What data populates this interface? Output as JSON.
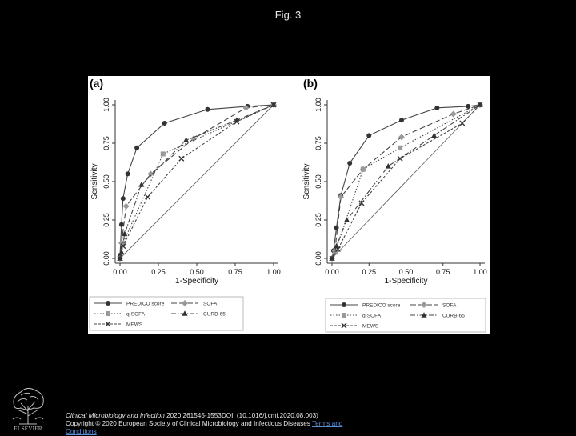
{
  "page": {
    "title": "Fig. 3",
    "citation": {
      "journal": "Clinical Microbiology and Infection",
      "details": " 2020 261545-1553DOI: (10.1016/j.cmi.2020.08.003)",
      "copyright": "Copyright © 2020 European Society of Clinical Microbiology and Infectious Diseases",
      "link_text": "Terms and",
      "link_text2": "Conditions"
    },
    "logo_text": "ELSEVIER"
  },
  "legend": {
    "items": [
      {
        "label": "PREDICO score",
        "color": "#555555",
        "marker": "circle",
        "dash": "solid"
      },
      {
        "label": "SOFA",
        "color": "#555555",
        "marker": "diamond",
        "dash": "longdash"
      },
      {
        "label": "q-SOFA",
        "color": "#555555",
        "marker": "square",
        "dash": "dot"
      },
      {
        "label": "CURB-65",
        "color": "#555555",
        "marker": "triangle",
        "dash": "dashdot"
      },
      {
        "label": "MEWS",
        "color": "#555555",
        "marker": "x",
        "dash": "shortdash"
      }
    ]
  },
  "chart_data": [
    {
      "type": "line",
      "panel_label": "(a)",
      "xlabel": "1-Specificity",
      "ylabel": "Sensitivity",
      "xlim": [
        0,
        1
      ],
      "ylim": [
        0,
        1
      ],
      "xticks": [
        "0.00",
        "0.25",
        "0.50",
        "0.75",
        "1.00"
      ],
      "yticks": [
        "0.00",
        "0.25",
        "0.50",
        "0.75",
        "1.00"
      ],
      "reference_line": true,
      "series": [
        {
          "name": "PREDICO score",
          "x": [
            0,
            0,
            0.01,
            0.02,
            0.05,
            0.11,
            0.29,
            0.57,
            0.83,
            1
          ],
          "y": [
            0,
            0.02,
            0.22,
            0.39,
            0.55,
            0.72,
            0.88,
            0.97,
            0.99,
            1
          ]
        },
        {
          "name": "SOFA",
          "x": [
            0,
            0.01,
            0.04,
            0.2,
            0.48,
            0.82,
            1
          ],
          "y": [
            0,
            0.1,
            0.34,
            0.55,
            0.78,
            0.98,
            1
          ]
        },
        {
          "name": "q-SOFA",
          "x": [
            0,
            0.02,
            0.28,
            1
          ],
          "y": [
            0,
            0.1,
            0.68,
            1
          ]
        },
        {
          "name": "CURB-65",
          "x": [
            0,
            0.01,
            0.03,
            0.14,
            0.43,
            0.76,
            1
          ],
          "y": [
            0,
            0.04,
            0.16,
            0.48,
            0.77,
            0.9,
            1
          ]
        },
        {
          "name": "MEWS",
          "x": [
            0,
            0.02,
            0.18,
            0.4,
            0.76,
            1
          ],
          "y": [
            0,
            0.08,
            0.4,
            0.65,
            0.89,
            1
          ]
        }
      ]
    },
    {
      "type": "line",
      "panel_label": "(b)",
      "xlabel": "1-Specificity",
      "ylabel": "Sensitivity",
      "xlim": [
        0,
        1
      ],
      "ylim": [
        0,
        1
      ],
      "xticks": [
        "0.00",
        "0.25",
        "0.50",
        "0.75",
        "1.00"
      ],
      "yticks": [
        "0.00",
        "0.25",
        "0.50",
        "0.75",
        "1.00"
      ],
      "reference_line": true,
      "series": [
        {
          "name": "PREDICO score",
          "x": [
            0,
            0.01,
            0.03,
            0.06,
            0.12,
            0.25,
            0.47,
            0.71,
            0.92,
            1
          ],
          "y": [
            0,
            0.05,
            0.2,
            0.41,
            0.62,
            0.8,
            0.9,
            0.98,
            0.99,
            1
          ]
        },
        {
          "name": "SOFA",
          "x": [
            0,
            0.02,
            0.06,
            0.21,
            0.47,
            0.82,
            1
          ],
          "y": [
            0,
            0.05,
            0.4,
            0.58,
            0.79,
            0.94,
            1
          ]
        },
        {
          "name": "q-SOFA",
          "x": [
            0,
            0.02,
            0.21,
            0.46,
            1
          ],
          "y": [
            0,
            0.04,
            0.58,
            0.72,
            1
          ]
        },
        {
          "name": "CURB-65",
          "x": [
            0,
            0.03,
            0.1,
            0.38,
            0.69,
            1
          ],
          "y": [
            0,
            0.08,
            0.25,
            0.6,
            0.8,
            1
          ]
        },
        {
          "name": "MEWS",
          "x": [
            0,
            0.04,
            0.2,
            0.46,
            0.88,
            1
          ],
          "y": [
            0,
            0.06,
            0.36,
            0.65,
            0.88,
            1
          ]
        }
      ]
    }
  ]
}
